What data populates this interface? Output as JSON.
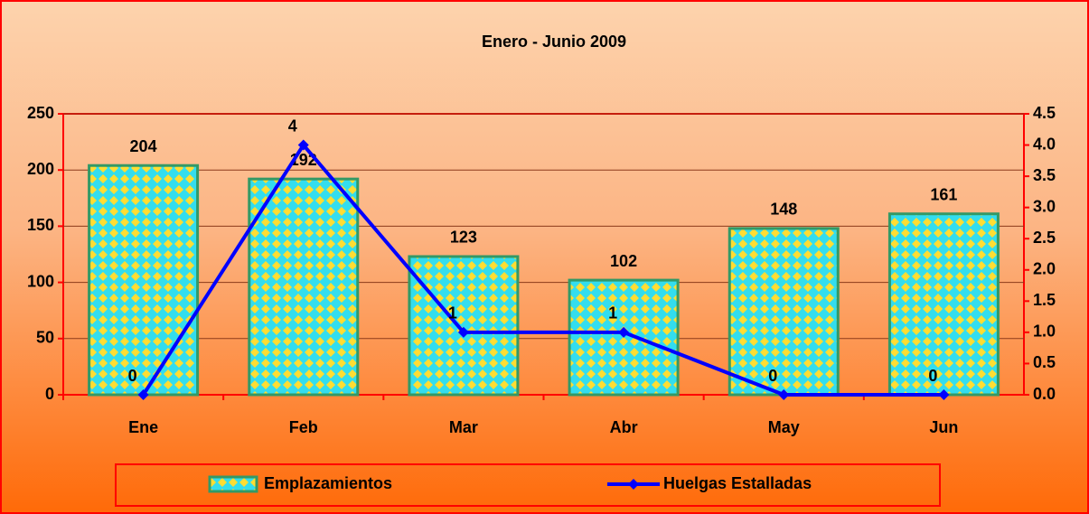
{
  "chart_data": {
    "type": "bar_line",
    "title": "Enero - Junio 2009",
    "categories": [
      "Ene",
      "Feb",
      "Mar",
      "Abr",
      "May",
      "Jun"
    ],
    "series": [
      {
        "name": "Emplazamientos",
        "type": "bar",
        "color": "#33ccff",
        "values": [
          204,
          192,
          123,
          102,
          148,
          161
        ]
      },
      {
        "name": "Huelgas Estalladas",
        "type": "line",
        "axis": "y2",
        "color": "#0000ff",
        "values": [
          0,
          4,
          1,
          1,
          0,
          0
        ]
      }
    ],
    "ylim": [
      0,
      250
    ],
    "yticks": [
      0,
      50,
      100,
      150,
      200,
      250
    ],
    "y2lim": [
      0,
      4.5
    ],
    "y2ticks": [
      {
        "value": 0,
        "label": "0.0"
      },
      0.5,
      {
        "value": 1,
        "label": "1.0"
      },
      1.5,
      {
        "value": 2,
        "label": "2.0"
      },
      2.5,
      {
        "value": 3,
        "label": "3.0"
      },
      3.5,
      {
        "value": 4,
        "label": "4.0"
      },
      4.5
    ],
    "grid": true,
    "legend": "bottom"
  }
}
